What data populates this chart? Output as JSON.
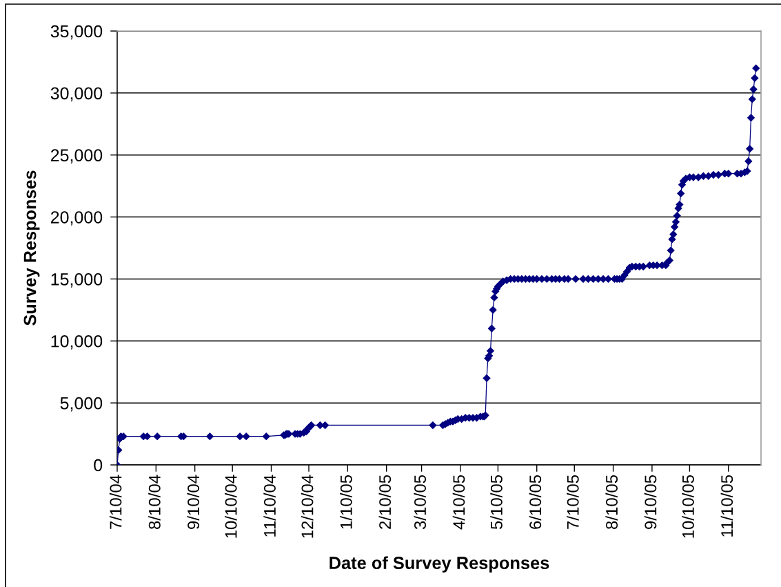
{
  "chart_data": {
    "type": "line",
    "xlabel": "Date of Survey Responses",
    "ylabel": "Survey Responses",
    "x": [
      "2004-07-10",
      "2004-07-11",
      "2004-07-12",
      "2004-07-13",
      "2004-07-15",
      "2004-07-31",
      "2004-08-03",
      "2004-08-11",
      "2004-08-30",
      "2004-09-01",
      "2004-09-22",
      "2004-10-16",
      "2004-10-21",
      "2004-11-06",
      "2004-11-20",
      "2004-11-21",
      "2004-11-22",
      "2004-11-23",
      "2004-11-24",
      "2004-11-29",
      "2004-12-01",
      "2004-12-03",
      "2004-12-06",
      "2004-12-08",
      "2004-12-09",
      "2004-12-10",
      "2004-12-11",
      "2004-12-12",
      "2004-12-19",
      "2004-12-23",
      "2005-03-19",
      "2005-03-27",
      "2005-03-29",
      "2005-03-31",
      "2005-04-02",
      "2005-04-04",
      "2005-04-06",
      "2005-04-08",
      "2005-04-11",
      "2005-04-14",
      "2005-04-17",
      "2005-04-20",
      "2005-04-23",
      "2005-04-26",
      "2005-04-28",
      "2005-04-29",
      "2005-04-30",
      "2005-05-01",
      "2005-05-02",
      "2005-05-03",
      "2005-05-04",
      "2005-05-05",
      "2005-05-06",
      "2005-05-07",
      "2005-05-08",
      "2005-05-09",
      "2005-05-10",
      "2005-05-12",
      "2005-05-14",
      "2005-05-17",
      "2005-05-20",
      "2005-05-23",
      "2005-05-26",
      "2005-05-29",
      "2005-06-01",
      "2005-06-04",
      "2005-06-07",
      "2005-06-10",
      "2005-06-14",
      "2005-06-18",
      "2005-06-22",
      "2005-06-25",
      "2005-06-28",
      "2005-07-02",
      "2005-07-05",
      "2005-07-11",
      "2005-07-17",
      "2005-07-21",
      "2005-07-25",
      "2005-07-29",
      "2005-08-02",
      "2005-08-06",
      "2005-08-11",
      "2005-08-13",
      "2005-08-15",
      "2005-08-17",
      "2005-08-19",
      "2005-08-21",
      "2005-08-23",
      "2005-08-25",
      "2005-08-28",
      "2005-08-31",
      "2005-09-03",
      "2005-09-08",
      "2005-09-11",
      "2005-09-14",
      "2005-09-18",
      "2005-09-21",
      "2005-09-22",
      "2005-09-24",
      "2005-09-25",
      "2005-09-26",
      "2005-09-27",
      "2005-09-28",
      "2005-09-29",
      "2005-09-30",
      "2005-10-01",
      "2005-10-02",
      "2005-10-03",
      "2005-10-04",
      "2005-10-05",
      "2005-10-07",
      "2005-10-10",
      "2005-10-13",
      "2005-10-17",
      "2005-10-21",
      "2005-10-25",
      "2005-10-29",
      "2005-11-02",
      "2005-11-07",
      "2005-11-10",
      "2005-11-17",
      "2005-11-20",
      "2005-11-23",
      "2005-11-25",
      "2005-11-26",
      "2005-11-27",
      "2005-11-28",
      "2005-11-29",
      "2005-11-30",
      "2005-12-01",
      "2005-12-02"
    ],
    "series": [
      {
        "color": "#000080",
        "values": [
          0,
          1200,
          2100,
          2300,
          2300,
          2300,
          2300,
          2300,
          2300,
          2300,
          2300,
          2300,
          2300,
          2300,
          2400,
          2400,
          2500,
          2500,
          2500,
          2500,
          2500,
          2500,
          2600,
          2700,
          2900,
          3000,
          3100,
          3200,
          3200,
          3200,
          3200,
          3200,
          3300,
          3400,
          3500,
          3500,
          3600,
          3700,
          3700,
          3800,
          3800,
          3800,
          3800,
          3900,
          3900,
          3900,
          4000,
          7000,
          8600,
          8800,
          9200,
          11000,
          12500,
          13500,
          14000,
          14200,
          14400,
          14600,
          14800,
          14900,
          15000,
          15000,
          15000,
          15000,
          15000,
          15000,
          15000,
          15000,
          15000,
          15000,
          15000,
          15000,
          15000,
          15000,
          15000,
          15000,
          15000,
          15000,
          15000,
          15000,
          15000,
          15000,
          15000,
          15000,
          15000,
          15000,
          15300,
          15600,
          15900,
          16000,
          16000,
          16000,
          16000,
          16100,
          16100,
          16100,
          16100,
          16100,
          16300,
          16500,
          17300,
          18200,
          18600,
          19200,
          19600,
          20100,
          20700,
          21000,
          21900,
          22600,
          22900,
          23100,
          23200,
          23200,
          23200,
          23300,
          23300,
          23400,
          23400,
          23500,
          23500,
          23500,
          23500,
          23600,
          23700,
          24500,
          25500,
          28000,
          29500,
          30300,
          31200,
          32000
        ]
      }
    ],
    "marker": "diamond",
    "line_style": "solid",
    "grid": "y",
    "xlim": [
      "2004-07-10",
      "2005-12-06"
    ],
    "xticks": [
      {
        "value": "2004-07-10",
        "label": "7/10/04"
      },
      {
        "value": "2004-08-10",
        "label": "8/10/04"
      },
      {
        "value": "2004-09-10",
        "label": "9/10/04"
      },
      {
        "value": "2004-10-10",
        "label": "10/10/04"
      },
      {
        "value": "2004-11-10",
        "label": "11/10/04"
      },
      {
        "value": "2004-12-10",
        "label": "12/10/04"
      },
      {
        "value": "2005-01-10",
        "label": "1/10/05"
      },
      {
        "value": "2005-02-10",
        "label": "2/10/05"
      },
      {
        "value": "2005-03-10",
        "label": "3/10/05"
      },
      {
        "value": "2005-04-10",
        "label": "4/10/05"
      },
      {
        "value": "2005-05-10",
        "label": "5/10/05"
      },
      {
        "value": "2005-06-10",
        "label": "6/10/05"
      },
      {
        "value": "2005-07-10",
        "label": "7/10/05"
      },
      {
        "value": "2005-08-10",
        "label": "8/10/05"
      },
      {
        "value": "2005-09-10",
        "label": "9/10/05"
      },
      {
        "value": "2005-10-10",
        "label": "10/10/05"
      },
      {
        "value": "2005-11-10",
        "label": "11/10/05"
      }
    ],
    "ylim": [
      0,
      35000
    ],
    "yticks": [
      0,
      {
        "value": 5000,
        "label": "5,000"
      },
      {
        "value": 10000,
        "label": "10,000"
      },
      {
        "value": 15000,
        "label": "15,000"
      },
      {
        "value": 20000,
        "label": "20,000"
      },
      {
        "value": 25000,
        "label": "25,000"
      },
      {
        "value": 30000,
        "label": "30,000"
      },
      {
        "value": 35000,
        "label": "35,000"
      }
    ]
  }
}
